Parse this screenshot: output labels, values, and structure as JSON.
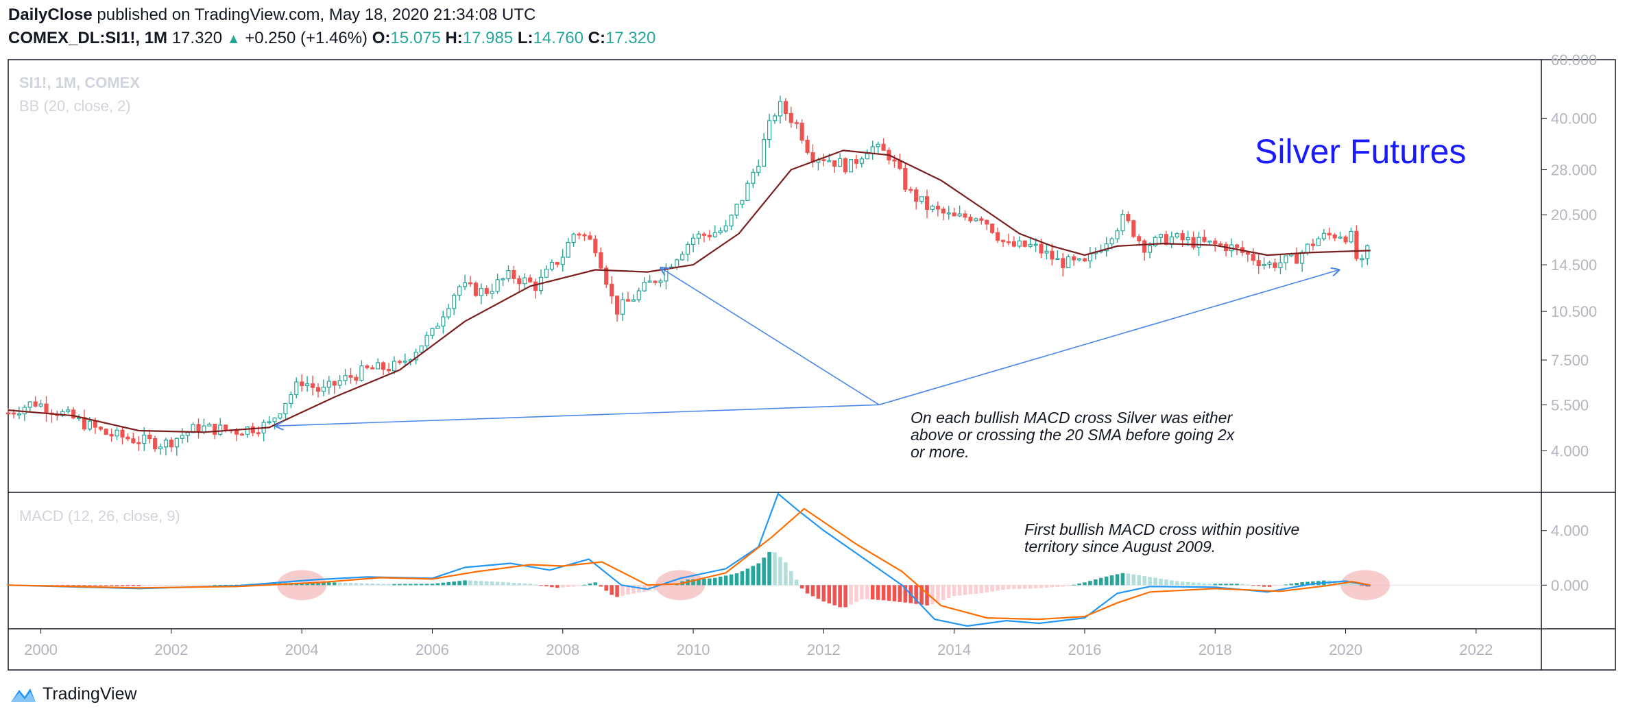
{
  "header": {
    "publisher": "DailyClose",
    "published_text": " published on TradingView.com, May 18, 2020 21:34:08 UTC",
    "symbol": "COMEX_DL:SI1!, 1M",
    "last": "17.320",
    "change": "+0.250 (+1.46%)",
    "o_label": "O:",
    "o_value": "15.075",
    "h_label": "H:",
    "h_value": "17.985",
    "l_label": "L:",
    "l_value": "14.760",
    "c_label": "C:",
    "c_value": "17.320"
  },
  "colors": {
    "bull": "#26a69a",
    "bear": "#ef5350",
    "sma": "#7b1e1e",
    "macd": "#2196f3",
    "signal": "#ff6d00",
    "annotation_arrow": "#4a86e8",
    "title": "#1a1aff",
    "highlight": "#f4b6b6"
  },
  "brand": {
    "name": "TradingView",
    "icon": "tradingview-logo-icon"
  },
  "chart_data": [
    {
      "type": "candlestick",
      "legend": [
        "SI1!, 1M, COMEX",
        "BB (20, close, 2)"
      ],
      "title": "Silver Futures",
      "y_scale": "log",
      "ylim": [
        3.0,
        60.0
      ],
      "y_ticks": [
        "60.000",
        "40.000",
        "28.000",
        "20.500",
        "14.500",
        "10.500",
        "7.500",
        "5.500",
        "4.000"
      ],
      "y_tick_values": [
        60,
        40,
        28,
        20.5,
        14.5,
        10.5,
        7.5,
        5.5,
        4.0
      ],
      "xlim": [
        1999.5,
        2023.0
      ],
      "x_ticks": [
        "2000",
        "2002",
        "2004",
        "2006",
        "2008",
        "2010",
        "2012",
        "2014",
        "2016",
        "2018",
        "2020",
        "2022"
      ],
      "x_tick_values": [
        2000,
        2002,
        2004,
        2006,
        2008,
        2010,
        2012,
        2014,
        2016,
        2018,
        2020,
        2022
      ],
      "price_path": [
        [
          1999.5,
          5.2
        ],
        [
          1999.9,
          5.6
        ],
        [
          2000.5,
          5.0
        ],
        [
          2001.0,
          4.5
        ],
        [
          2001.5,
          4.3
        ],
        [
          2001.9,
          4.2
        ],
        [
          2002.4,
          4.7
        ],
        [
          2003.0,
          4.6
        ],
        [
          2003.5,
          4.8
        ],
        [
          2004.0,
          6.5
        ],
        [
          2004.3,
          6.0
        ],
        [
          2004.6,
          6.5
        ],
        [
          2005.0,
          7.0
        ],
        [
          2005.5,
          7.2
        ],
        [
          2006.0,
          9.0
        ],
        [
          2006.4,
          12.5
        ],
        [
          2006.8,
          12.0
        ],
        [
          2007.2,
          13.5
        ],
        [
          2007.6,
          12.5
        ],
        [
          2008.0,
          15.5
        ],
        [
          2008.2,
          18.5
        ],
        [
          2008.5,
          16.5
        ],
        [
          2008.8,
          10.5
        ],
        [
          2009.0,
          11.2
        ],
        [
          2009.5,
          13.5
        ],
        [
          2010.0,
          17.5
        ],
        [
          2010.5,
          18.5
        ],
        [
          2010.8,
          24.0
        ],
        [
          2011.0,
          30.0
        ],
        [
          2011.3,
          44.0
        ],
        [
          2011.6,
          38.0
        ],
        [
          2011.8,
          31.0
        ],
        [
          2012.0,
          30.5
        ],
        [
          2012.4,
          28.5
        ],
        [
          2012.7,
          33.0
        ],
        [
          2013.0,
          31.0
        ],
        [
          2013.3,
          24.0
        ],
        [
          2013.6,
          21.5
        ],
        [
          2014.0,
          20.0
        ],
        [
          2014.4,
          20.5
        ],
        [
          2014.8,
          16.5
        ],
        [
          2015.2,
          16.5
        ],
        [
          2015.6,
          14.8
        ],
        [
          2016.0,
          14.5
        ],
        [
          2016.3,
          17.0
        ],
        [
          2016.6,
          20.0
        ],
        [
          2016.9,
          16.5
        ],
        [
          2017.3,
          17.5
        ],
        [
          2017.8,
          16.8
        ],
        [
          2018.2,
          16.5
        ],
        [
          2018.8,
          14.5
        ],
        [
          2019.2,
          15.0
        ],
        [
          2019.6,
          17.5
        ],
        [
          2019.9,
          18.0
        ],
        [
          2020.1,
          17.5
        ],
        [
          2020.2,
          14.0
        ],
        [
          2020.3,
          15.0
        ],
        [
          2020.38,
          17.32
        ]
      ],
      "sma_label": "20 SMA",
      "sma_path": [
        [
          1999.5,
          5.3
        ],
        [
          2000.5,
          5.1
        ],
        [
          2001.5,
          4.6
        ],
        [
          2002.5,
          4.55
        ],
        [
          2003.5,
          4.7
        ],
        [
          2004.5,
          5.8
        ],
        [
          2005.5,
          7.0
        ],
        [
          2006.5,
          9.8
        ],
        [
          2007.5,
          12.5
        ],
        [
          2008.5,
          14.0
        ],
        [
          2009.3,
          13.8
        ],
        [
          2010.0,
          14.5
        ],
        [
          2010.7,
          18.0
        ],
        [
          2011.5,
          28.0
        ],
        [
          2012.3,
          32.0
        ],
        [
          2013.0,
          31.0
        ],
        [
          2013.8,
          26.0
        ],
        [
          2014.5,
          21.0
        ],
        [
          2015.0,
          18.0
        ],
        [
          2015.5,
          16.5
        ],
        [
          2016.0,
          15.5
        ],
        [
          2016.5,
          16.5
        ],
        [
          2017.2,
          16.8
        ],
        [
          2018.0,
          16.6
        ],
        [
          2018.8,
          15.5
        ],
        [
          2019.5,
          15.8
        ],
        [
          2020.38,
          16.0
        ]
      ],
      "annotations": [
        "On each bullish MACD cross Silver was either",
        "above or crossing the 20 SMA before going 2x",
        "or more."
      ],
      "arrow_origin": [
        2012.85,
        5.5
      ],
      "arrow_targets": [
        [
          2003.6,
          4.75
        ],
        [
          2009.5,
          14.2
        ],
        [
          2019.9,
          14.0
        ]
      ]
    },
    {
      "type": "line",
      "legend": [
        "MACD (12, 26, close, 9)"
      ],
      "ylim": [
        -3.2,
        6.8
      ],
      "y_ticks": [
        "4.000",
        "0.000"
      ],
      "y_tick_values": [
        4.0,
        0.0
      ],
      "series": [
        {
          "name": "MACD",
          "values": [
            [
              1999.5,
              0.0
            ],
            [
              2001.5,
              -0.25
            ],
            [
              2003.0,
              -0.05
            ],
            [
              2004.2,
              0.4
            ],
            [
              2005.0,
              0.6
            ],
            [
              2006.0,
              0.5
            ],
            [
              2006.5,
              1.3
            ],
            [
              2007.2,
              1.6
            ],
            [
              2007.8,
              1.1
            ],
            [
              2008.4,
              1.9
            ],
            [
              2008.9,
              0.0
            ],
            [
              2009.3,
              -0.3
            ],
            [
              2009.8,
              0.5
            ],
            [
              2010.5,
              1.2
            ],
            [
              2011.0,
              2.8
            ],
            [
              2011.3,
              6.7
            ],
            [
              2011.6,
              5.5
            ],
            [
              2012.0,
              4.0
            ],
            [
              2012.6,
              2.0
            ],
            [
              2013.2,
              0.0
            ],
            [
              2013.7,
              -2.5
            ],
            [
              2014.2,
              -3.0
            ],
            [
              2014.8,
              -2.6
            ],
            [
              2015.3,
              -2.8
            ],
            [
              2016.0,
              -2.4
            ],
            [
              2016.5,
              -0.6
            ],
            [
              2017.0,
              -0.1
            ],
            [
              2018.0,
              -0.15
            ],
            [
              2018.8,
              -0.5
            ],
            [
              2019.5,
              0.1
            ],
            [
              2020.0,
              0.3
            ],
            [
              2020.38,
              -0.05
            ]
          ]
        },
        {
          "name": "Signal",
          "values": [
            [
              1999.5,
              0.0
            ],
            [
              2001.5,
              -0.2
            ],
            [
              2003.0,
              -0.1
            ],
            [
              2004.3,
              0.2
            ],
            [
              2005.2,
              0.55
            ],
            [
              2006.0,
              0.45
            ],
            [
              2006.7,
              1.0
            ],
            [
              2007.5,
              1.5
            ],
            [
              2008.0,
              1.4
            ],
            [
              2008.6,
              1.7
            ],
            [
              2009.3,
              0.0
            ],
            [
              2009.8,
              0.1
            ],
            [
              2010.5,
              0.9
            ],
            [
              2011.2,
              3.5
            ],
            [
              2011.7,
              5.6
            ],
            [
              2012.5,
              3.0
            ],
            [
              2013.2,
              1.0
            ],
            [
              2013.8,
              -1.5
            ],
            [
              2014.5,
              -2.4
            ],
            [
              2015.3,
              -2.5
            ],
            [
              2016.0,
              -2.3
            ],
            [
              2016.5,
              -1.3
            ],
            [
              2017.0,
              -0.5
            ],
            [
              2018.0,
              -0.25
            ],
            [
              2019.0,
              -0.45
            ],
            [
              2019.7,
              -0.05
            ],
            [
              2020.1,
              0.25
            ],
            [
              2020.38,
              0.0
            ]
          ]
        }
      ],
      "histogram": [
        [
          2000.0,
          -0.02
        ],
        [
          2000.8,
          -0.05
        ],
        [
          2001.5,
          -0.08
        ],
        [
          2002.3,
          -0.03
        ],
        [
          2003.0,
          0.03
        ],
        [
          2003.8,
          0.15
        ],
        [
          2004.5,
          0.2
        ],
        [
          2005.3,
          0.08
        ],
        [
          2006.0,
          0.1
        ],
        [
          2006.5,
          0.35
        ],
        [
          2007.0,
          0.25
        ],
        [
          2007.5,
          0.1
        ],
        [
          2007.9,
          -0.2
        ],
        [
          2008.2,
          -0.1
        ],
        [
          2008.5,
          0.2
        ],
        [
          2008.8,
          -0.9
        ],
        [
          2009.1,
          -0.6
        ],
        [
          2009.5,
          -0.3
        ],
        [
          2009.9,
          0.4
        ],
        [
          2010.3,
          0.5
        ],
        [
          2010.7,
          0.9
        ],
        [
          2011.0,
          1.6
        ],
        [
          2011.2,
          2.6
        ],
        [
          2011.4,
          1.8
        ],
        [
          2011.7,
          -0.5
        ],
        [
          2012.0,
          -1.2
        ],
        [
          2012.3,
          -1.7
        ],
        [
          2012.6,
          -1.0
        ],
        [
          2012.9,
          -1.1
        ],
        [
          2013.3,
          -1.3
        ],
        [
          2013.6,
          -1.5
        ],
        [
          2014.0,
          -0.8
        ],
        [
          2014.4,
          -0.6
        ],
        [
          2014.8,
          -0.3
        ],
        [
          2015.2,
          -0.25
        ],
        [
          2015.7,
          -0.1
        ],
        [
          2016.0,
          0.2
        ],
        [
          2016.3,
          0.6
        ],
        [
          2016.6,
          0.9
        ],
        [
          2017.0,
          0.6
        ],
        [
          2017.4,
          0.3
        ],
        [
          2017.9,
          0.1
        ],
        [
          2018.4,
          0.1
        ],
        [
          2018.8,
          -0.15
        ],
        [
          2019.3,
          0.2
        ],
        [
          2019.7,
          0.35
        ],
        [
          2020.0,
          0.25
        ],
        [
          2020.3,
          -0.1
        ]
      ],
      "highlight_points": [
        [
          2004.0,
          0.0
        ],
        [
          2009.8,
          0.0
        ],
        [
          2020.3,
          0.0
        ]
      ],
      "annotations": [
        "First bullish MACD cross within positive",
        "territory since August 2009."
      ]
    }
  ]
}
